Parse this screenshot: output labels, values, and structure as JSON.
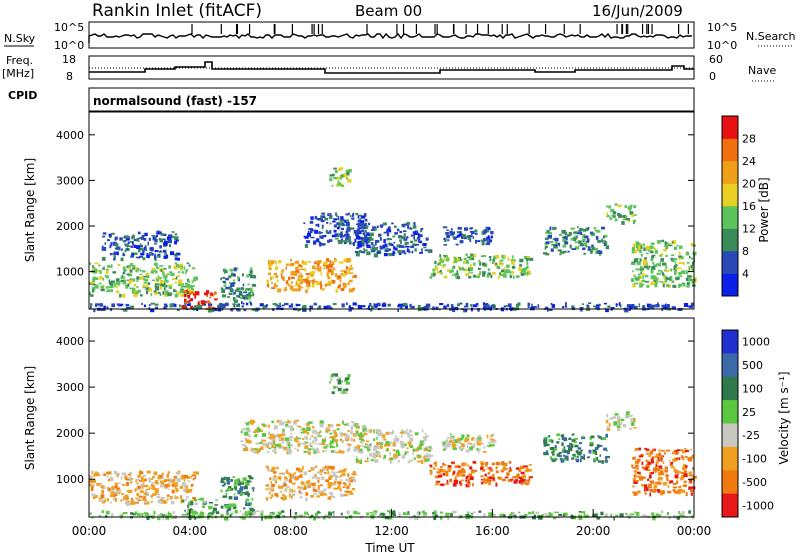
{
  "header": {
    "station": "Rankin Inlet (fitACF)",
    "beam": "Beam 00",
    "date": "16/Jun/2009"
  },
  "status_panels": {
    "nsky_label": "N.Sky",
    "nsky_ticks": [
      "10^5",
      "10^0"
    ],
    "nsearch_label": "N.Search",
    "nsearch_ticks": [
      "10^5",
      "10^0"
    ],
    "freq_label_1": "Freq.",
    "freq_label_2": "[MHz]",
    "freq_ticks": [
      "18",
      "8"
    ],
    "nave_label": "Nave",
    "nave_ticks": [
      "60",
      "0"
    ],
    "cpid_label": "CPID",
    "cpid_text": "normalsound (fast) -157"
  },
  "chart_data": [
    {
      "type": "heatmap",
      "name": "power",
      "ylabel": "Slant Range [km]",
      "xlabel": "",
      "yticks": [
        1000,
        2000,
        3000,
        4000
      ],
      "ylim": [
        180,
        4500
      ],
      "xlim": [
        0,
        24
      ],
      "colorbar": {
        "label": "Power [dB]",
        "levels": [
          "4",
          "8",
          "12",
          "16",
          "20",
          "24",
          "28"
        ],
        "colors": [
          "#0a1fe8",
          "#2848b8",
          "#3a8a5a",
          "#5cc45a",
          "#e8d020",
          "#f0a018",
          "#f07010",
          "#e81010"
        ]
      },
      "echo_regions": [
        {
          "t0": 0.0,
          "t1": 4.2,
          "r0": 500,
          "r1": 1200,
          "level": 3
        },
        {
          "t0": 0.5,
          "t1": 3.5,
          "r0": 1300,
          "r1": 1900,
          "level": 1
        },
        {
          "t0": 3.6,
          "t1": 5.0,
          "r0": 200,
          "r1": 600,
          "level": 7
        },
        {
          "t0": 5.2,
          "t1": 6.5,
          "r0": 300,
          "r1": 1100,
          "level": 2
        },
        {
          "t0": 7.0,
          "t1": 10.5,
          "r0": 600,
          "r1": 1300,
          "level": 5
        },
        {
          "t0": 8.5,
          "t1": 11.0,
          "r0": 1600,
          "r1": 2300,
          "level": 1
        },
        {
          "t0": 9.5,
          "t1": 10.3,
          "r0": 2900,
          "r1": 3300,
          "level": 3
        },
        {
          "t0": 10.5,
          "t1": 13.5,
          "r0": 1400,
          "r1": 2100,
          "level": 1
        },
        {
          "t0": 13.5,
          "t1": 17.5,
          "r0": 900,
          "r1": 1400,
          "level": 3
        },
        {
          "t0": 14.0,
          "t1": 16.0,
          "r0": 1600,
          "r1": 2000,
          "level": 1
        },
        {
          "t0": 18.0,
          "t1": 20.5,
          "r0": 1400,
          "r1": 2000,
          "level": 2
        },
        {
          "t0": 20.5,
          "t1": 21.6,
          "r0": 2100,
          "r1": 2500,
          "level": 3
        },
        {
          "t0": 21.5,
          "t1": 24.0,
          "r0": 700,
          "r1": 1700,
          "level": 3
        },
        {
          "t0": 0.0,
          "t1": 24.0,
          "r0": 180,
          "r1": 330,
          "level": 1
        }
      ]
    },
    {
      "type": "heatmap",
      "name": "velocity",
      "ylabel": "Slant Range [km]",
      "xlabel": "Time UT",
      "yticks": [
        1000,
        2000,
        3000,
        4000
      ],
      "xticks": [
        "00:00",
        "04:00",
        "08:00",
        "12:00",
        "16:00",
        "20:00",
        "00:00"
      ],
      "ylim": [
        180,
        4500
      ],
      "xlim": [
        0,
        24
      ],
      "colorbar": {
        "label": "Velocity [m s⁻¹]",
        "levels": [
          "1000",
          "500",
          "100",
          "25",
          "-25",
          "-100",
          "-500",
          "-1000"
        ],
        "colors": [
          "#2030d0",
          "#3a6aa8",
          "#2f7a4a",
          "#5cc840",
          "#c8c8c0",
          "#f0a020",
          "#f07a10",
          "#e81818"
        ]
      },
      "echo_regions": [
        {
          "t0": 0.0,
          "t1": 4.2,
          "r0": 500,
          "r1": 1200,
          "level": 5
        },
        {
          "t0": 3.6,
          "t1": 5.0,
          "r0": 200,
          "r1": 600,
          "level": 3
        },
        {
          "t0": 5.2,
          "t1": 6.5,
          "r0": 300,
          "r1": 1100,
          "level": 2
        },
        {
          "t0": 7.0,
          "t1": 10.5,
          "r0": 600,
          "r1": 1300,
          "level": 5
        },
        {
          "t0": 6.0,
          "t1": 11.0,
          "r0": 1600,
          "r1": 2300,
          "level": 4
        },
        {
          "t0": 9.5,
          "t1": 10.3,
          "r0": 2900,
          "r1": 3300,
          "level": 3
        },
        {
          "t0": 10.5,
          "t1": 13.5,
          "r0": 1400,
          "r1": 2100,
          "level": 4
        },
        {
          "t0": 13.5,
          "t1": 17.5,
          "r0": 900,
          "r1": 1400,
          "level": 6
        },
        {
          "t0": 14.0,
          "t1": 16.0,
          "r0": 1600,
          "r1": 2000,
          "level": 4
        },
        {
          "t0": 18.0,
          "t1": 20.5,
          "r0": 1400,
          "r1": 2000,
          "level": 2
        },
        {
          "t0": 20.5,
          "t1": 21.6,
          "r0": 2100,
          "r1": 2500,
          "level": 4
        },
        {
          "t0": 21.5,
          "t1": 24.0,
          "r0": 700,
          "r1": 1700,
          "level": 6
        },
        {
          "t0": 0.0,
          "t1": 24.0,
          "r0": 180,
          "r1": 330,
          "level": 3
        }
      ]
    }
  ]
}
